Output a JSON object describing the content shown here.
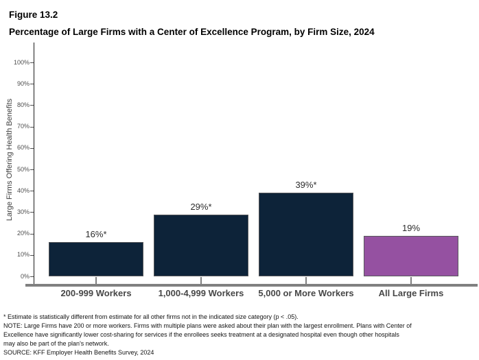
{
  "figure": {
    "label": "Figure 13.2",
    "title": "Percentage of Large Firms with a Center of Excellence Program, by Firm Size, 2024"
  },
  "chart_data": {
    "type": "bar",
    "categories": [
      "200-999 Workers",
      "1,000-4,999 Workers",
      "5,000 or More Workers",
      "All Large Firms"
    ],
    "values": [
      16,
      29,
      39,
      19
    ],
    "value_labels": [
      "16%*",
      "29%*",
      "39%*",
      "19%"
    ],
    "bar_colors": [
      "#0d2339",
      "#0d2339",
      "#0d2339",
      "#9551a1"
    ],
    "bar_border_color": "#58595b",
    "title": "Percentage of Large Firms with a Center of Excellence Program, by Firm Size, 2024",
    "xlabel": "",
    "ylabel": "Large Firms Offering Health Benefits",
    "ylim": [
      0,
      100
    ],
    "ytick_step": 10,
    "ytick_suffix": "%",
    "grid": false,
    "legend": null
  },
  "footnotes": [
    "* Estimate is statistically different from estimate for all other firms not in the indicated size category (p < .05).",
    "NOTE: Large Firms have 200 or more workers.  Firms with multiple plans were asked about their plan with the largest enrollment.  Plans with Center of",
    "Excellence have significantly lower cost-sharing for services if the enrollees seeks treatment at a designated hospital even though other hospitals",
    "may also be part of the plan's network.",
    "SOURCE: KFF Employer Health Benefits Survey, 2024"
  ]
}
